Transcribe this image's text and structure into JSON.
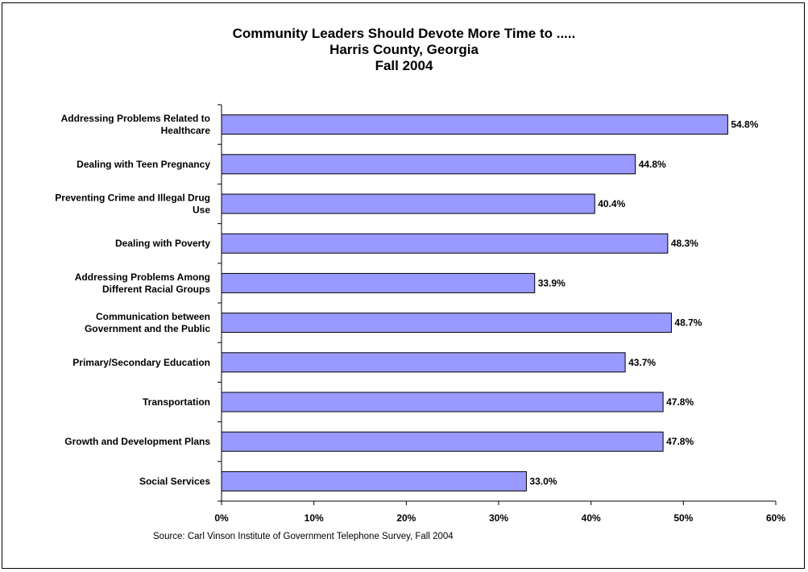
{
  "chart_data": {
    "type": "bar",
    "orientation": "horizontal",
    "title": [
      "Community Leaders Should Devote More Time to .....",
      "Harris County, Georgia",
      "Fall 2004"
    ],
    "categories": [
      "Addressing Problems Related to Healthcare",
      "Dealing with Teen Pregnancy",
      "Preventing Crime and Illegal Drug Use",
      "Dealing with Poverty",
      "Addressing Problems Among Different Racial Groups",
      "Communication between Government and the Public",
      "Primary/Secondary Education",
      "Transportation",
      "Growth and Development Plans",
      "Social Services"
    ],
    "category_lines": [
      [
        "Addressing Problems Related to",
        "Healthcare"
      ],
      [
        "Dealing with Teen Pregnancy"
      ],
      [
        "Preventing Crime and Illegal Drug",
        "Use"
      ],
      [
        "Dealing with Poverty"
      ],
      [
        "Addressing Problems Among",
        "Different Racial Groups"
      ],
      [
        "Communication between",
        "Government and the Public"
      ],
      [
        "Primary/Secondary Education"
      ],
      [
        "Transportation"
      ],
      [
        "Growth and Development Plans"
      ],
      [
        "Social Services"
      ]
    ],
    "values": [
      54.8,
      44.8,
      40.4,
      48.3,
      33.9,
      48.7,
      43.7,
      47.8,
      47.8,
      33.0
    ],
    "value_labels": [
      "54.8%",
      "44.8%",
      "40.4%",
      "48.3%",
      "33.9%",
      "48.7%",
      "43.7%",
      "47.8%",
      "47.8%",
      "33.0%"
    ],
    "xlim": [
      0,
      60
    ],
    "xticks": [
      0,
      10,
      20,
      30,
      40,
      50,
      60
    ],
    "xtick_labels": [
      "0%",
      "10%",
      "20%",
      "30%",
      "40%",
      "50%",
      "60%"
    ],
    "xlabel": "",
    "ylabel": "",
    "grid": false,
    "legend": "none",
    "bar_color": "#9999ff",
    "bar_edge_color": "#000000",
    "source": "Source:  Carl Vinson Institute of Government Telephone Survey, Fall 2004"
  }
}
